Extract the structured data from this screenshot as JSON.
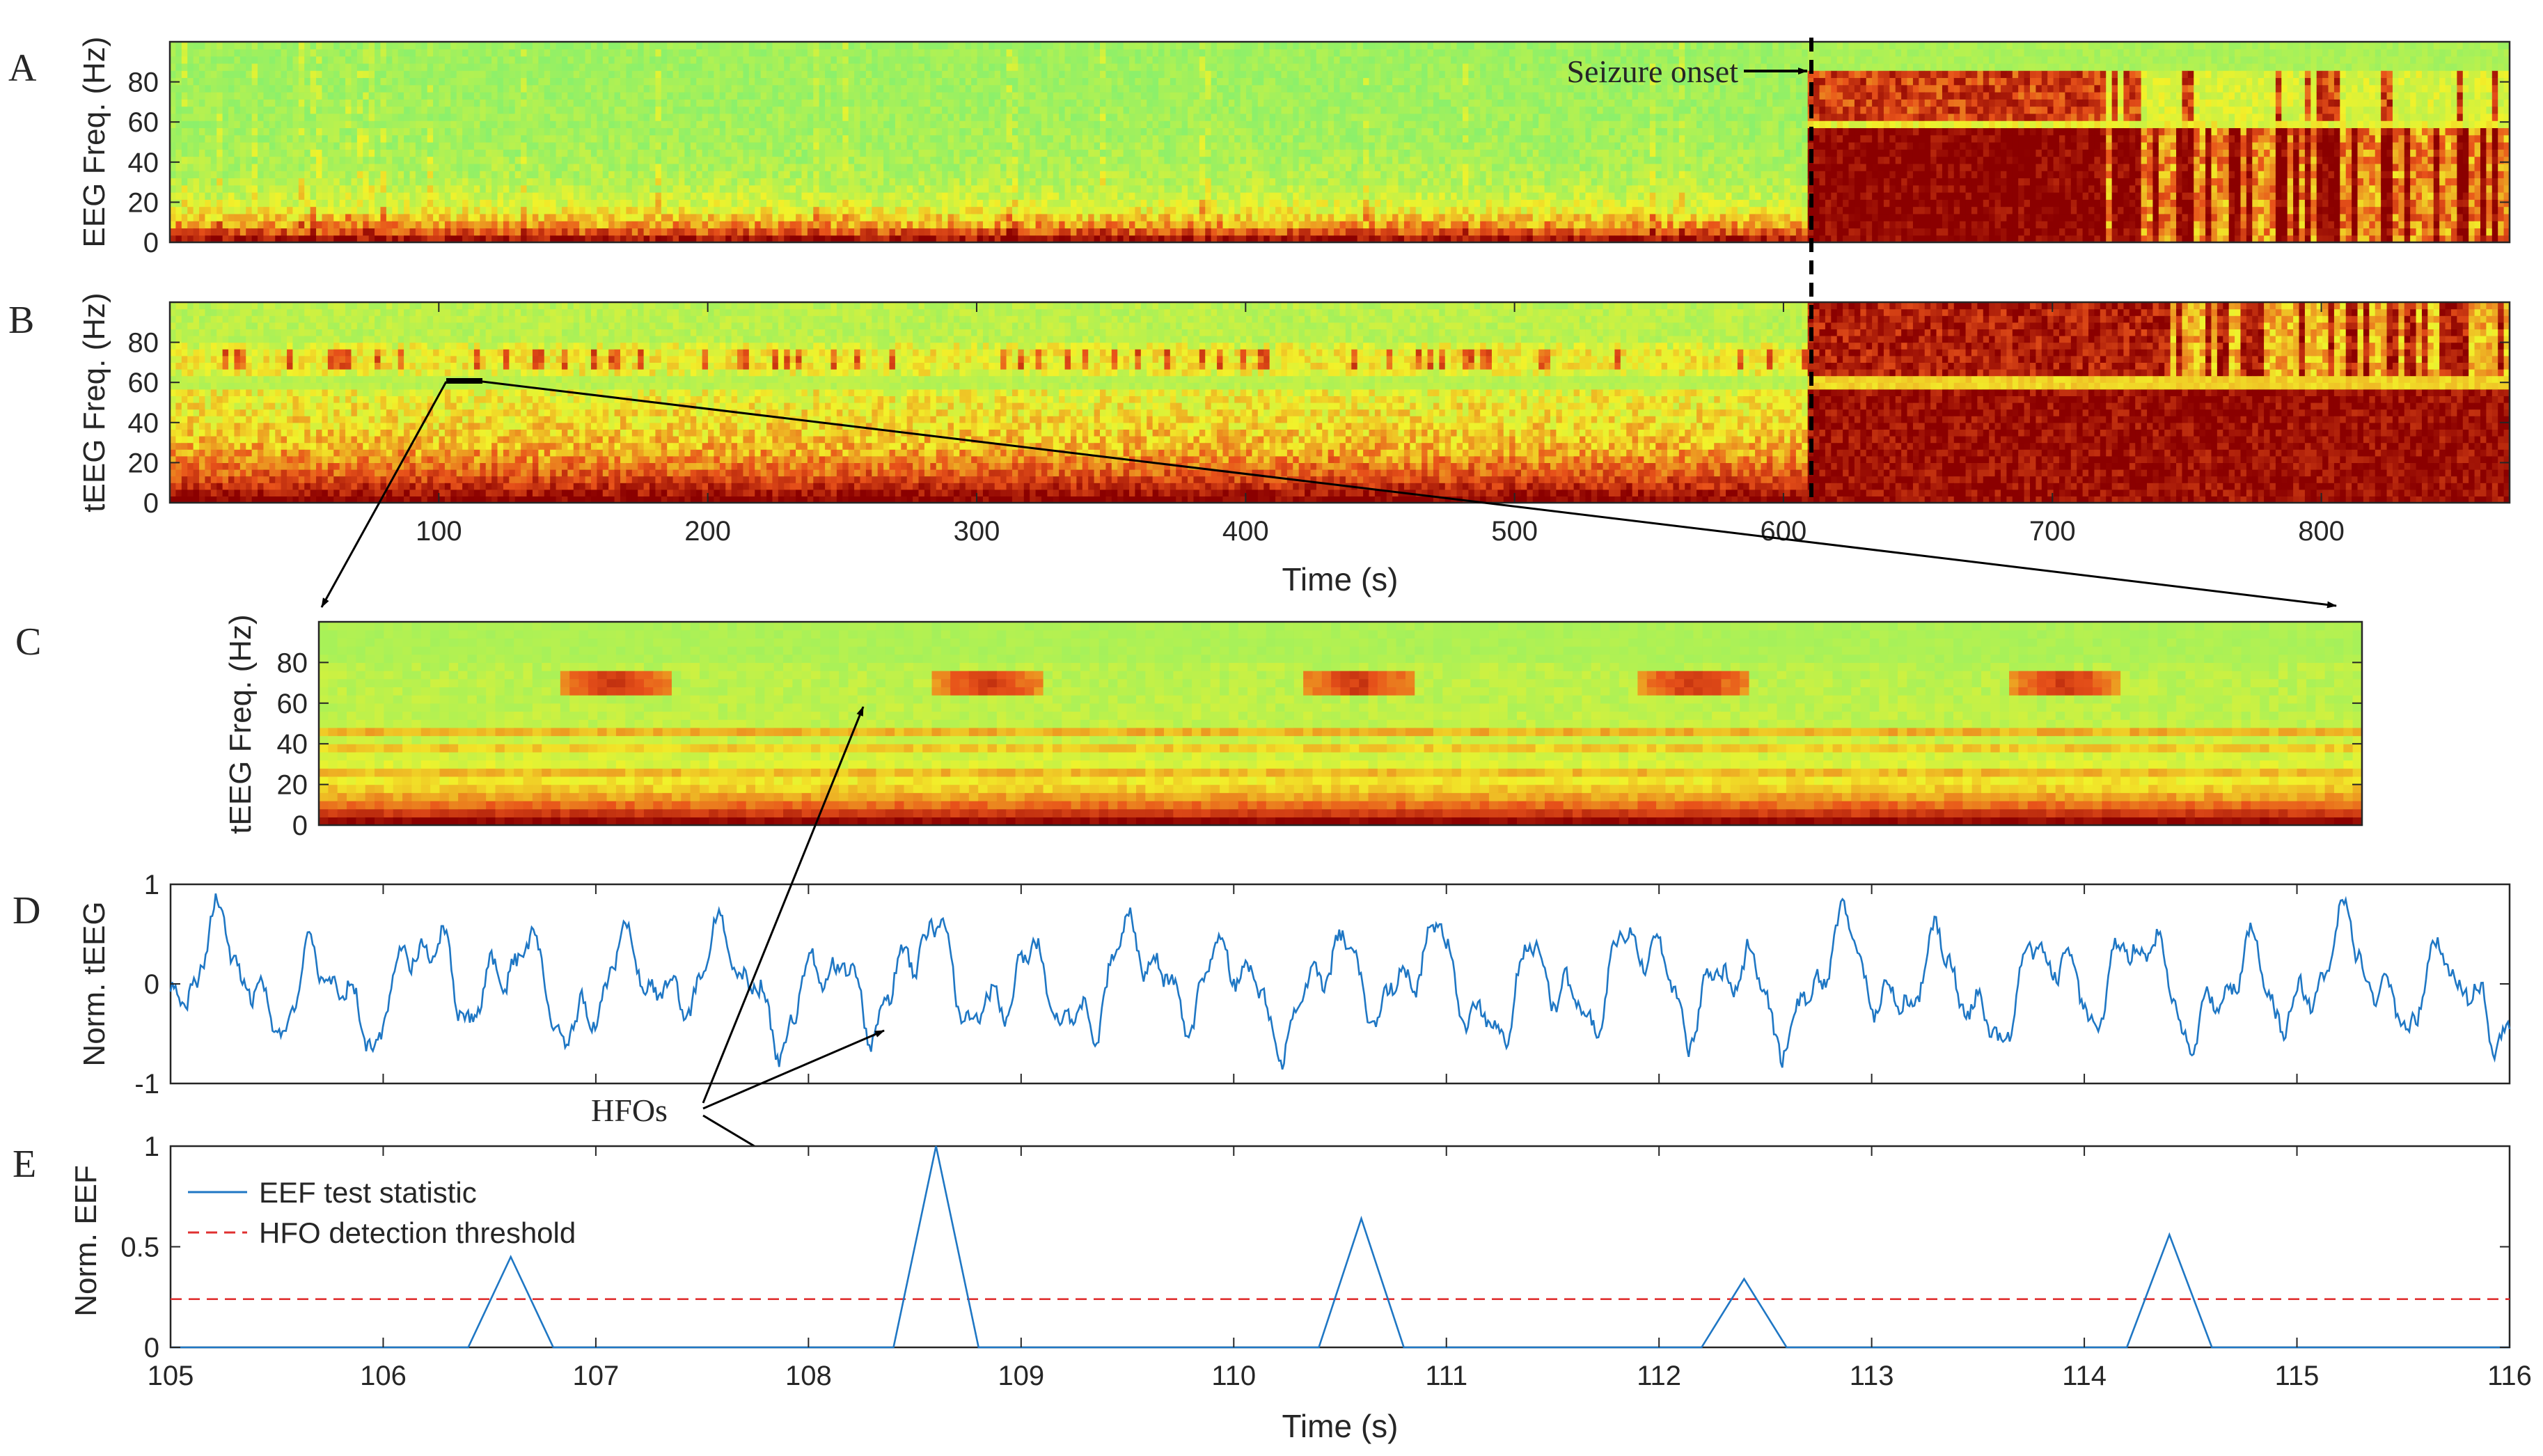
{
  "colors": {
    "spectrogram_low": "#8cf06a",
    "spectrogram_mid": "#f2f22a",
    "spectrogram_hot": "#e8521a",
    "spectrogram_high": "#8b0000",
    "signal": "#1f77c4",
    "threshold": "#e03030",
    "axis": "#262626",
    "annotation": "#000000"
  },
  "annotations": {
    "seizure_onset": "Seizure onset",
    "hfos": "HFOs"
  },
  "chart_data": [
    {
      "panel": "A",
      "type": "heatmap",
      "ylabel": "EEG Freq. (Hz)",
      "xlim": [
        0,
        870
      ],
      "ylim": [
        0,
        100
      ],
      "yticks": [
        "0",
        "20",
        "40",
        "60",
        "80"
      ],
      "seizure_onset_time": 610
    },
    {
      "panel": "B",
      "type": "heatmap",
      "ylabel": "tEEG Freq. (Hz)",
      "xlabel": "Time (s)",
      "xlim": [
        0,
        870
      ],
      "ylim": [
        0,
        100
      ],
      "xticks": [
        "100",
        "200",
        "300",
        "400",
        "500",
        "600",
        "700",
        "800"
      ],
      "yticks": [
        "0",
        "20",
        "40",
        "60",
        "80"
      ],
      "seizure_onset_time": 610,
      "zoom_window": [
        105,
        116
      ]
    },
    {
      "panel": "C",
      "type": "heatmap",
      "ylabel": "tEEG Freq. (Hz)",
      "xlim": [
        105,
        116
      ],
      "ylim": [
        0,
        100
      ],
      "yticks": [
        "0",
        "20",
        "40",
        "60",
        "80"
      ],
      "hfo_times": [
        106.6,
        108.6,
        110.6,
        112.4,
        114.4
      ],
      "hfo_freq": 70
    },
    {
      "panel": "D",
      "type": "line",
      "ylabel": "Norm. tEEG",
      "xlim": [
        105,
        116
      ],
      "ylim": [
        -1,
        1
      ],
      "yticks": [
        "-1",
        "0",
        "1"
      ]
    },
    {
      "panel": "E",
      "type": "line",
      "ylabel": "Norm. EEF",
      "xlabel": "Time (s)",
      "xlim": [
        105,
        116
      ],
      "ylim": [
        0,
        1
      ],
      "xticks": [
        "105",
        "106",
        "107",
        "108",
        "109",
        "110",
        "111",
        "112",
        "113",
        "114",
        "115",
        "116"
      ],
      "yticks": [
        "0",
        "0.5",
        "1"
      ],
      "series": [
        {
          "name": "EEF test statistic",
          "x": [
            105,
            106.4,
            106.6,
            106.8,
            108.4,
            108.6,
            108.8,
            110.4,
            110.6,
            110.8,
            112.2,
            112.4,
            112.6,
            114.2,
            114.4,
            114.6,
            116
          ],
          "y": [
            0,
            0,
            0.45,
            0,
            0,
            1.0,
            0,
            0,
            0.64,
            0,
            0,
            0.34,
            0,
            0,
            0.56,
            0,
            0
          ]
        },
        {
          "name": "HFO detection threshold",
          "x": [
            105,
            116
          ],
          "y": [
            0.24,
            0.24
          ]
        }
      ]
    }
  ]
}
